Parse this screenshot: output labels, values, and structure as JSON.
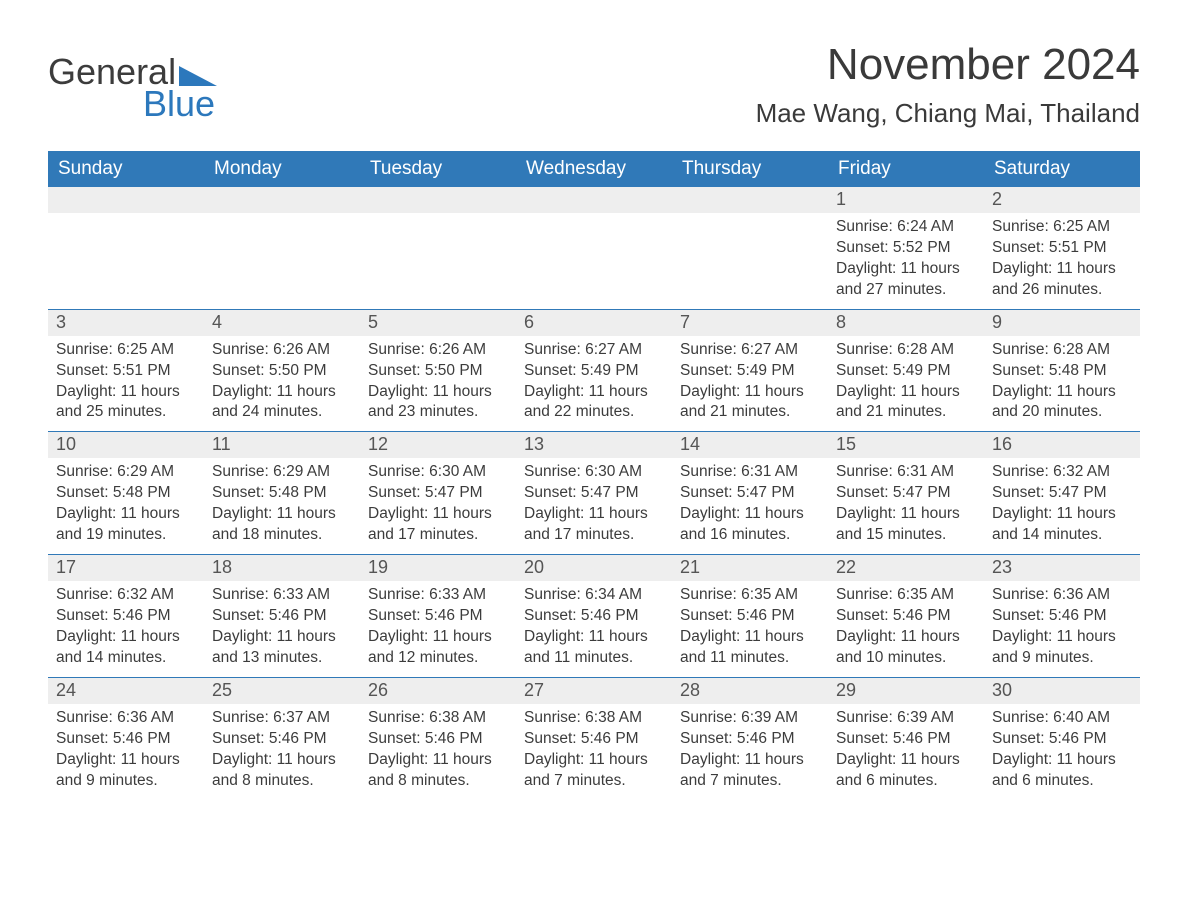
{
  "branding": {
    "word1": "General",
    "word2": "Blue",
    "accent_color": "#2c78bc",
    "text_color": "#3c3c3c"
  },
  "title": "November 2024",
  "location": "Mae Wang, Chiang Mai, Thailand",
  "colors": {
    "header_bg": "#3079b8",
    "header_text": "#ffffff",
    "day_band_bg": "#eeeeee",
    "body_text": "#3c3c3c",
    "rule": "#3079b8",
    "page_bg": "#ffffff"
  },
  "typography": {
    "title_fontsize": 44,
    "location_fontsize": 26,
    "day_header_fontsize": 19,
    "cell_fontsize": 15.5
  },
  "day_headers": [
    "Sunday",
    "Monday",
    "Tuesday",
    "Wednesday",
    "Thursday",
    "Friday",
    "Saturday"
  ],
  "labels": {
    "sunrise": "Sunrise: ",
    "sunset": "Sunset: ",
    "daylight": "Daylight: "
  },
  "weeks": [
    [
      {
        "empty": true
      },
      {
        "empty": true
      },
      {
        "empty": true
      },
      {
        "empty": true
      },
      {
        "empty": true
      },
      {
        "day": "1",
        "sunrise": "6:24 AM",
        "sunset": "5:52 PM",
        "daylight": "11 hours and 27 minutes."
      },
      {
        "day": "2",
        "sunrise": "6:25 AM",
        "sunset": "5:51 PM",
        "daylight": "11 hours and 26 minutes."
      }
    ],
    [
      {
        "day": "3",
        "sunrise": "6:25 AM",
        "sunset": "5:51 PM",
        "daylight": "11 hours and 25 minutes."
      },
      {
        "day": "4",
        "sunrise": "6:26 AM",
        "sunset": "5:50 PM",
        "daylight": "11 hours and 24 minutes."
      },
      {
        "day": "5",
        "sunrise": "6:26 AM",
        "sunset": "5:50 PM",
        "daylight": "11 hours and 23 minutes."
      },
      {
        "day": "6",
        "sunrise": "6:27 AM",
        "sunset": "5:49 PM",
        "daylight": "11 hours and 22 minutes."
      },
      {
        "day": "7",
        "sunrise": "6:27 AM",
        "sunset": "5:49 PM",
        "daylight": "11 hours and 21 minutes."
      },
      {
        "day": "8",
        "sunrise": "6:28 AM",
        "sunset": "5:49 PM",
        "daylight": "11 hours and 21 minutes."
      },
      {
        "day": "9",
        "sunrise": "6:28 AM",
        "sunset": "5:48 PM",
        "daylight": "11 hours and 20 minutes."
      }
    ],
    [
      {
        "day": "10",
        "sunrise": "6:29 AM",
        "sunset": "5:48 PM",
        "daylight": "11 hours and 19 minutes."
      },
      {
        "day": "11",
        "sunrise": "6:29 AM",
        "sunset": "5:48 PM",
        "daylight": "11 hours and 18 minutes."
      },
      {
        "day": "12",
        "sunrise": "6:30 AM",
        "sunset": "5:47 PM",
        "daylight": "11 hours and 17 minutes."
      },
      {
        "day": "13",
        "sunrise": "6:30 AM",
        "sunset": "5:47 PM",
        "daylight": "11 hours and 17 minutes."
      },
      {
        "day": "14",
        "sunrise": "6:31 AM",
        "sunset": "5:47 PM",
        "daylight": "11 hours and 16 minutes."
      },
      {
        "day": "15",
        "sunrise": "6:31 AM",
        "sunset": "5:47 PM",
        "daylight": "11 hours and 15 minutes."
      },
      {
        "day": "16",
        "sunrise": "6:32 AM",
        "sunset": "5:47 PM",
        "daylight": "11 hours and 14 minutes."
      }
    ],
    [
      {
        "day": "17",
        "sunrise": "6:32 AM",
        "sunset": "5:46 PM",
        "daylight": "11 hours and 14 minutes."
      },
      {
        "day": "18",
        "sunrise": "6:33 AM",
        "sunset": "5:46 PM",
        "daylight": "11 hours and 13 minutes."
      },
      {
        "day": "19",
        "sunrise": "6:33 AM",
        "sunset": "5:46 PM",
        "daylight": "11 hours and 12 minutes."
      },
      {
        "day": "20",
        "sunrise": "6:34 AM",
        "sunset": "5:46 PM",
        "daylight": "11 hours and 11 minutes."
      },
      {
        "day": "21",
        "sunrise": "6:35 AM",
        "sunset": "5:46 PM",
        "daylight": "11 hours and 11 minutes."
      },
      {
        "day": "22",
        "sunrise": "6:35 AM",
        "sunset": "5:46 PM",
        "daylight": "11 hours and 10 minutes."
      },
      {
        "day": "23",
        "sunrise": "6:36 AM",
        "sunset": "5:46 PM",
        "daylight": "11 hours and 9 minutes."
      }
    ],
    [
      {
        "day": "24",
        "sunrise": "6:36 AM",
        "sunset": "5:46 PM",
        "daylight": "11 hours and 9 minutes."
      },
      {
        "day": "25",
        "sunrise": "6:37 AM",
        "sunset": "5:46 PM",
        "daylight": "11 hours and 8 minutes."
      },
      {
        "day": "26",
        "sunrise": "6:38 AM",
        "sunset": "5:46 PM",
        "daylight": "11 hours and 8 minutes."
      },
      {
        "day": "27",
        "sunrise": "6:38 AM",
        "sunset": "5:46 PM",
        "daylight": "11 hours and 7 minutes."
      },
      {
        "day": "28",
        "sunrise": "6:39 AM",
        "sunset": "5:46 PM",
        "daylight": "11 hours and 7 minutes."
      },
      {
        "day": "29",
        "sunrise": "6:39 AM",
        "sunset": "5:46 PM",
        "daylight": "11 hours and 6 minutes."
      },
      {
        "day": "30",
        "sunrise": "6:40 AM",
        "sunset": "5:46 PM",
        "daylight": "11 hours and 6 minutes."
      }
    ]
  ]
}
